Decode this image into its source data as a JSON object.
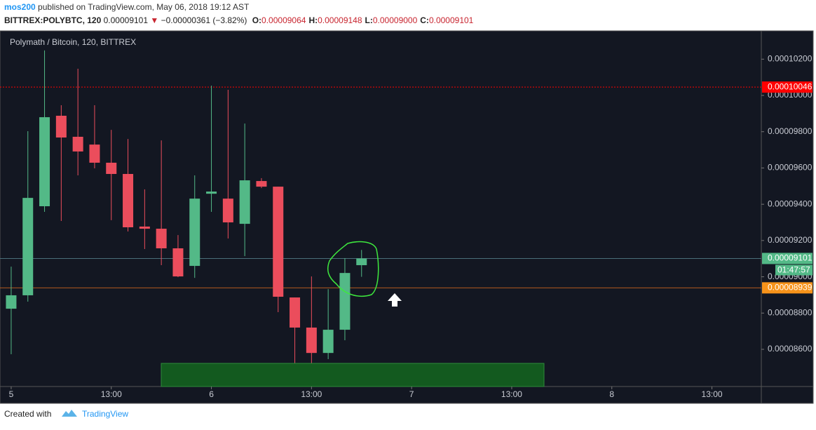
{
  "header": {
    "author": "mos200",
    "published": "published on TradingView.com, May 06, 2018 19:12 AST",
    "symbol": "BITTREX:POLYBTC, 120",
    "last": "0.00009101",
    "change": "−0.00000361 (−3.82%)",
    "ohlc": [
      {
        "label": "O:",
        "value": "0.00009064"
      },
      {
        "label": "H:",
        "value": "0.00009148"
      },
      {
        "label": "L:",
        "value": "0.00009000"
      },
      {
        "label": "C:",
        "value": "0.00009101"
      }
    ]
  },
  "footer": {
    "created": "Created with",
    "brand": "TradingView"
  },
  "chart_data": {
    "type": "candlestick",
    "title": "Polymath / Bitcoin, 120, BITTREX",
    "up_color": "#53b987",
    "down_color": "#eb4d5c",
    "grid": false,
    "x": [
      0,
      1,
      2,
      3,
      4,
      5,
      6,
      7,
      8,
      9,
      10,
      11,
      12,
      13,
      14,
      15,
      16,
      17,
      18,
      19,
      20,
      21
    ],
    "open": [
      8.824e-05,
      8.898e-05,
      9.389e-05,
      9.888e-05,
      9.772e-05,
      9.729e-05,
      9.629e-05,
      9.567e-05,
      9.277e-05,
      9.265e-05,
      9.157e-05,
      9.06e-05,
      9.458e-05,
      9.431e-05,
      9.292e-05,
      9.528e-05,
      9.497e-05,
      8.886e-05,
      8.72e-05,
      8.58e-05,
      8.708e-05,
      9.064e-05
    ],
    "high": [
      9.056e-05,
      9.803e-05,
      0.00010248,
      9.946e-05,
      0.00010147,
      9.946e-05,
      9.81e-05,
      9.76e-05,
      9.482e-05,
      9.752e-05,
      9.23e-05,
      9.559e-05,
      0.00010054,
      0.00010031,
      9.845e-05,
      9.544e-05,
      9.497e-05,
      8.886e-05,
      9.002e-05,
      8.932e-05,
      9.103e-05,
      9.148e-05
    ],
    "low": [
      8.573e-05,
      8.863e-05,
      9.358e-05,
      9.308e-05,
      9.559e-05,
      9.598e-05,
      9.312e-05,
      9.25e-05,
      9.153e-05,
      9.064e-05,
      8.998e-05,
      8.994e-05,
      9.358e-05,
      9.211e-05,
      9.114e-05,
      9.489e-05,
      8.805e-05,
      8.515e-05,
      8.522e-05,
      8.546e-05,
      8.65e-05,
      9e-05
    ],
    "close": [
      8.898e-05,
      9.435e-05,
      9.88e-05,
      9.768e-05,
      9.691e-05,
      9.629e-05,
      9.567e-05,
      9.273e-05,
      9.265e-05,
      9.157e-05,
      9.002e-05,
      9.431e-05,
      9.47e-05,
      9.3e-05,
      9.532e-05,
      9.497e-05,
      8.89e-05,
      8.72e-05,
      8.58e-05,
      8.708e-05,
      9.021e-05,
      9.101e-05
    ],
    "xlim": [
      -0.67,
      44.96
    ],
    "xticks": [
      {
        "value": 0,
        "label": "5"
      },
      {
        "value": 6,
        "label": "13:00"
      },
      {
        "value": 12,
        "label": "6"
      },
      {
        "value": 18,
        "label": "13:00"
      },
      {
        "value": 24,
        "label": "7"
      },
      {
        "value": 30,
        "label": "13:00"
      },
      {
        "value": 36,
        "label": "8"
      },
      {
        "value": 42,
        "label": "13:00"
      }
    ],
    "ylim": [
      8.395e-05,
      0.00010356
    ],
    "yticks": [
      {
        "value": 8.6e-05,
        "label": "0.00008600"
      },
      {
        "value": 8.8e-05,
        "label": "0.00008800"
      },
      {
        "value": 9e-05,
        "label": "0.00009000"
      },
      {
        "value": 9.2e-05,
        "label": "0.00009200"
      },
      {
        "value": 9.4e-05,
        "label": "0.00009400"
      },
      {
        "value": 9.6e-05,
        "label": "0.00009600"
      },
      {
        "value": 9.8e-05,
        "label": "0.00009800"
      },
      {
        "value": 0.0001,
        "label": "0.00010000"
      },
      {
        "value": 0.000102,
        "label": "0.00010200"
      }
    ],
    "price_lines": [
      {
        "value": 0.00010046,
        "label": "0.00010046",
        "color": "#ff0000",
        "dash": true
      },
      {
        "value": 9.101e-05,
        "label": "0.00009101",
        "color": "#53b987",
        "line_color": "#4a6e7a",
        "countdown": "01:47:57"
      },
      {
        "value": 8.939e-05,
        "label": "0.00008939",
        "color": "#f7931a",
        "line_color": "#b35a1f"
      }
    ]
  }
}
